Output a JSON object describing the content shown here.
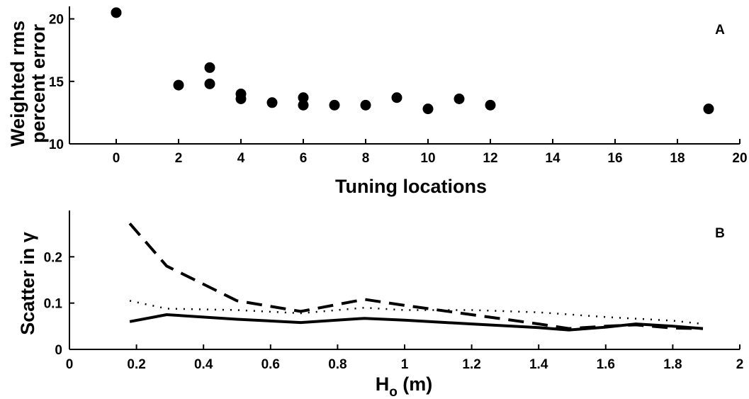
{
  "chart_data": [
    {
      "type": "scatter",
      "panel_label": "A",
      "xlabel": "Tuning locations",
      "ylabel_lines": [
        "Weighted rms",
        "percent error"
      ],
      "xlim": [
        -1.5,
        20
      ],
      "ylim": [
        10,
        21
      ],
      "xticks": [
        0,
        2,
        4,
        6,
        8,
        10,
        12,
        14,
        16,
        18,
        20
      ],
      "yticks": [
        10,
        15,
        20
      ],
      "points": [
        {
          "x": 0,
          "y": 20.5
        },
        {
          "x": 2,
          "y": 14.7
        },
        {
          "x": 3,
          "y": 16.1
        },
        {
          "x": 3,
          "y": 14.8
        },
        {
          "x": 4,
          "y": 14.0
        },
        {
          "x": 4,
          "y": 13.6
        },
        {
          "x": 5,
          "y": 13.3
        },
        {
          "x": 6,
          "y": 13.7
        },
        {
          "x": 6,
          "y": 13.1
        },
        {
          "x": 7,
          "y": 13.1
        },
        {
          "x": 8,
          "y": 13.1
        },
        {
          "x": 9,
          "y": 13.7
        },
        {
          "x": 10,
          "y": 12.8
        },
        {
          "x": 11,
          "y": 13.6
        },
        {
          "x": 12,
          "y": 13.1
        },
        {
          "x": 19,
          "y": 12.8
        }
      ]
    },
    {
      "type": "line",
      "panel_label": "B",
      "xlabel": "H",
      "xlabel_sub": "o",
      "xlabel_unit": " (m)",
      "ylabel": "Scatter in γ",
      "xlim": [
        0,
        2
      ],
      "ylim": [
        0,
        0.3
      ],
      "xticks": [
        0,
        0.2,
        0.4,
        0.6,
        0.8,
        1,
        1.2,
        1.4,
        1.6,
        1.8,
        2
      ],
      "yticks": [
        0,
        0.1,
        0.2
      ],
      "series": [
        {
          "style": "dashed",
          "x": [
            0.18,
            0.29,
            0.5,
            0.69,
            0.88,
            1.0,
            1.2,
            1.4,
            1.49,
            1.6,
            1.69,
            1.8,
            1.89
          ],
          "y": [
            0.272,
            0.18,
            0.105,
            0.082,
            0.108,
            0.095,
            0.075,
            0.055,
            0.045,
            0.05,
            0.053,
            0.046,
            0.045
          ]
        },
        {
          "style": "dotted",
          "x": [
            0.18,
            0.29,
            0.5,
            0.69,
            0.88,
            1.0,
            1.2,
            1.4,
            1.6,
            1.8,
            1.89
          ],
          "y": [
            0.105,
            0.088,
            0.085,
            0.078,
            0.09,
            0.085,
            0.085,
            0.08,
            0.07,
            0.062,
            0.055
          ]
        },
        {
          "style": "solid",
          "x": [
            0.18,
            0.29,
            0.5,
            0.69,
            0.88,
            1.0,
            1.2,
            1.4,
            1.49,
            1.6,
            1.69,
            1.8,
            1.89
          ],
          "y": [
            0.06,
            0.075,
            0.065,
            0.058,
            0.067,
            0.063,
            0.055,
            0.047,
            0.042,
            0.048,
            0.055,
            0.05,
            0.045
          ]
        }
      ]
    }
  ]
}
